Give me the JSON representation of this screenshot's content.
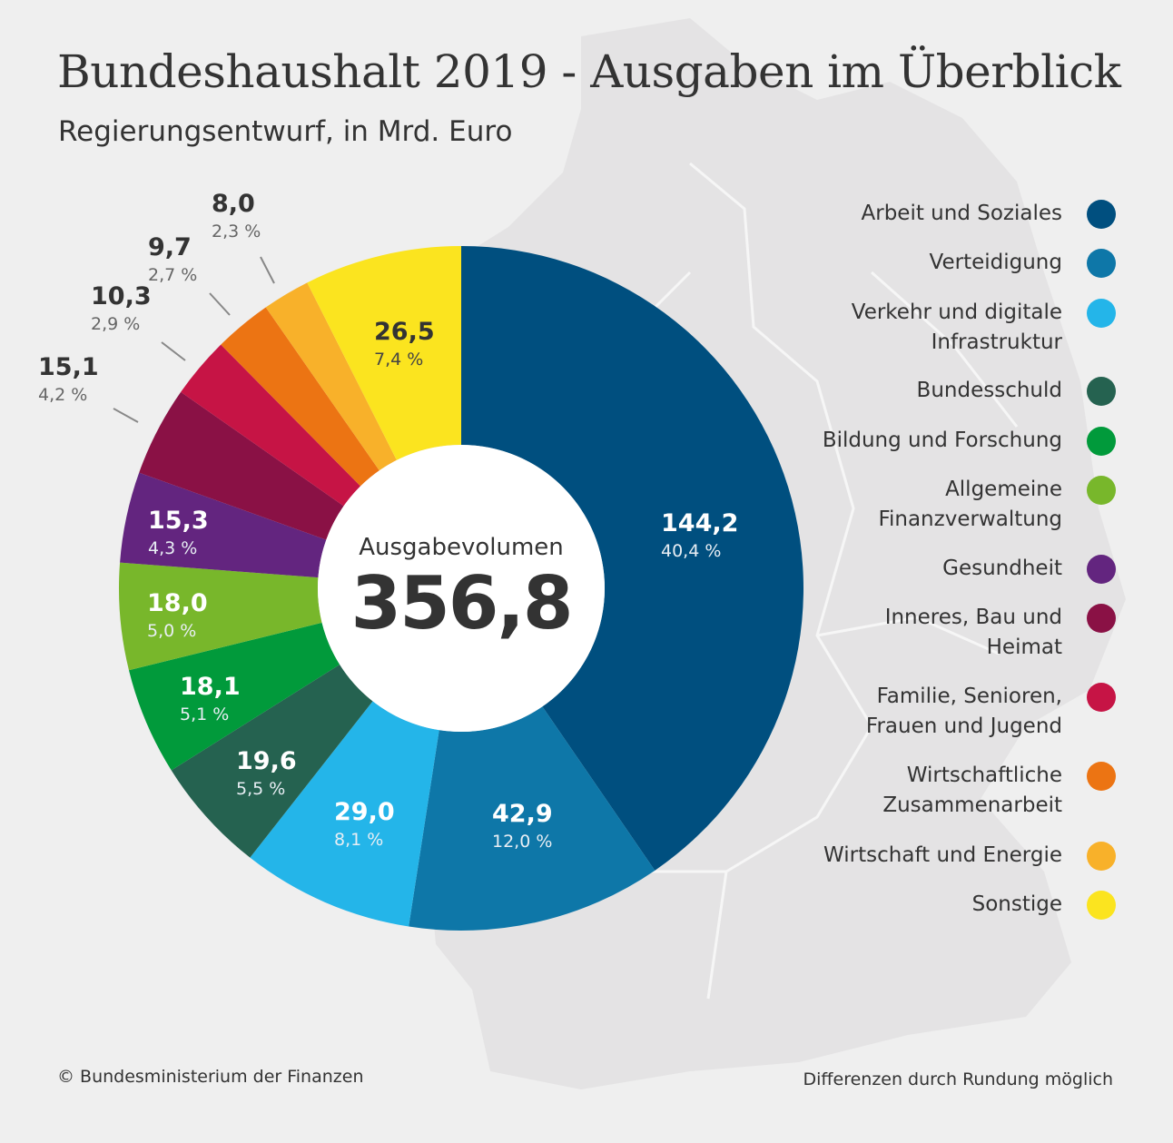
{
  "title": "Bundeshaushalt 2019 - Ausgaben im Überblick",
  "subtitle": "Regierungsentwurf, in Mrd. Euro",
  "chart_data": {
    "type": "pie",
    "donut": true,
    "start": "top, clockwise",
    "center_label": "Ausgabevolumen",
    "center_value": "356,8",
    "legend_position": "right",
    "slices": [
      {
        "name": "Arbeit und Soziales",
        "value": 144.2,
        "value_label": "144,2",
        "percent_label": "40,4 %",
        "color": "#004f7f"
      },
      {
        "name": "Verteidigung",
        "value": 42.9,
        "value_label": "42,9",
        "percent_label": "12,0 %",
        "color": "#0e77a8"
      },
      {
        "name": "Verkehr und digitale Infrastruktur",
        "value": 29.0,
        "value_label": "29,0",
        "percent_label": "8,1 %",
        "color": "#24b5e9"
      },
      {
        "name": "Bundesschuld",
        "value": 19.6,
        "value_label": "19,6",
        "percent_label": "5,5 %",
        "color": "#256250"
      },
      {
        "name": "Bildung und Forschung",
        "value": 18.1,
        "value_label": "18,1",
        "percent_label": "5,1 %",
        "color": "#019a3b"
      },
      {
        "name": "Allgemeine Finanzverwaltung",
        "value": 18.0,
        "value_label": "18,0",
        "percent_label": "5,0 %",
        "color": "#78b72b"
      },
      {
        "name": "Gesundheit",
        "value": 15.3,
        "value_label": "15,3",
        "percent_label": "4,3 %",
        "color": "#63257f"
      },
      {
        "name": "Inneres, Bau und Heimat",
        "value": 15.1,
        "value_label": "15,1",
        "percent_label": "4,2 %",
        "color": "#8a1145"
      },
      {
        "name": "Familie, Senioren, Frauen und Jugend",
        "value": 10.3,
        "value_label": "10,3",
        "percent_label": "2,9 %",
        "color": "#c61445"
      },
      {
        "name": "Wirtschaftliche Zusammenarbeit",
        "value": 9.7,
        "value_label": "9,7",
        "percent_label": "2,7 %",
        "color": "#ec7413"
      },
      {
        "name": "Wirtschaft und Energie",
        "value": 8.0,
        "value_label": "8,0",
        "percent_label": "2,3 %",
        "color": "#f8b12a"
      },
      {
        "name": "Sonstige",
        "value": 26.5,
        "value_label": "26,5",
        "percent_label": "7,4 %",
        "color": "#fbe41f"
      }
    ]
  },
  "legend": [
    {
      "lines": [
        "Arbeit und Soziales"
      ]
    },
    {
      "lines": [
        "Verteidigung"
      ]
    },
    {
      "lines": [
        "Verkehr und digitale",
        "Infrastruktur"
      ]
    },
    {
      "lines": [
        "Bundesschuld"
      ]
    },
    {
      "lines": [
        "Bildung und Forschung"
      ]
    },
    {
      "lines": [
        "Allgemeine",
        "Finanzverwaltung"
      ]
    },
    {
      "lines": [
        "Gesundheit"
      ]
    },
    {
      "lines": [
        "Inneres, Bau und",
        "Heimat"
      ]
    },
    {
      "lines": [
        "Familie, Senioren,",
        "Frauen und Jugend"
      ]
    },
    {
      "lines": [
        "Wirtschaftliche",
        "Zusammenarbeit"
      ]
    },
    {
      "lines": [
        "Wirtschaft und Energie"
      ]
    },
    {
      "lines": [
        "Sonstige"
      ]
    }
  ],
  "footer": {
    "copyright": "© Bundesministerium der Finanzen",
    "note": "Differenzen durch Rundung möglich"
  }
}
